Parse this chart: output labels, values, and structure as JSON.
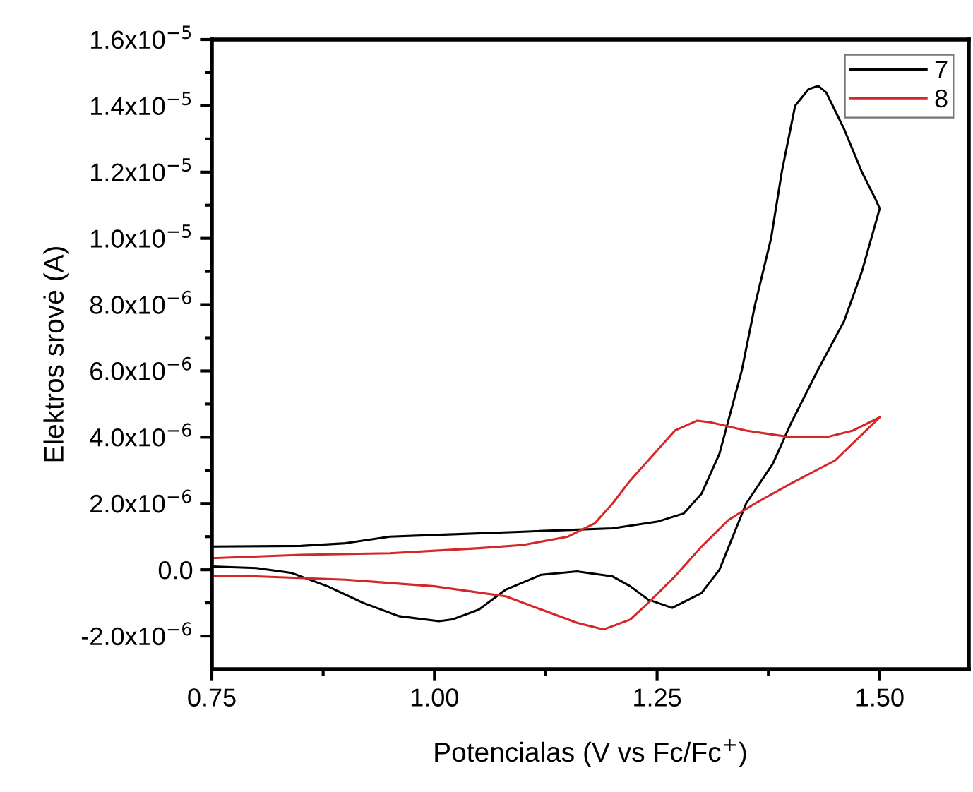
{
  "chart_data": {
    "type": "line",
    "xlabel": "Potencialas (V vs Fc/Fc$^{+}$)",
    "ylabel": "Elektros srovė (A)",
    "xlim": [
      0.75,
      1.6
    ],
    "ylim": [
      -3e-06,
      1.6e-05
    ],
    "xticks": [
      {
        "value": 0.75,
        "label": "0.75"
      },
      {
        "value": 0.875,
        "label": null
      },
      {
        "value": 1.0,
        "label": "1.00"
      },
      {
        "value": 1.125,
        "label": null
      },
      {
        "value": 1.25,
        "label": "1.25"
      },
      {
        "value": 1.375,
        "label": null
      },
      {
        "value": 1.5,
        "label": "1.50"
      }
    ],
    "yticks": [
      {
        "value": -2e-06,
        "label": "-2.0x10$^{−6}$"
      },
      {
        "value": -1e-06,
        "label": null
      },
      {
        "value": 0,
        "label": "0.0"
      },
      {
        "value": 1e-06,
        "label": null
      },
      {
        "value": 2e-06,
        "label": "2.0x10$^{−6}$"
      },
      {
        "value": 3e-06,
        "label": null
      },
      {
        "value": 4e-06,
        "label": "4.0x10$^{−6}$"
      },
      {
        "value": 5e-06,
        "label": null
      },
      {
        "value": 6e-06,
        "label": "6.0x10$^{−6}$"
      },
      {
        "value": 7e-06,
        "label": null
      },
      {
        "value": 8e-06,
        "label": "8.0x10$^{−6}$"
      },
      {
        "value": 9e-06,
        "label": null
      },
      {
        "value": 1e-05,
        "label": "1.0x10$^{−5}$"
      },
      {
        "value": 1.1e-05,
        "label": null
      },
      {
        "value": 1.2e-05,
        "label": "1.2x10$^{−5}$"
      },
      {
        "value": 1.3e-05,
        "label": null
      },
      {
        "value": 1.4e-05,
        "label": "1.4x10$^{−5}$"
      },
      {
        "value": 1.5e-05,
        "label": null
      },
      {
        "value": 1.6e-05,
        "label": "1.6x10$^{−5}$"
      }
    ],
    "grid": false,
    "legend": "top right",
    "marker": "none",
    "line_style": "solid",
    "series": [
      {
        "name": "7",
        "color": "#000000",
        "x": [
          0.75,
          0.85,
          0.9,
          0.95,
          1.0,
          1.1,
          1.2,
          1.25,
          1.28,
          1.3,
          1.32,
          1.345,
          1.36,
          1.378,
          1.39,
          1.405,
          1.42,
          1.431,
          1.44,
          1.46,
          1.48,
          1.495,
          1.5,
          1.48,
          1.46,
          1.43,
          1.4,
          1.38,
          1.35,
          1.32,
          1.3,
          1.267,
          1.24,
          1.22,
          1.2,
          1.16,
          1.12,
          1.08,
          1.05,
          1.02,
          1.005,
          0.96,
          0.92,
          0.88,
          0.84,
          0.8,
          0.75
        ],
        "values": [
          7e-07,
          7.2e-07,
          8e-07,
          1e-06,
          1.05e-06,
          1.15e-06,
          1.25e-06,
          1.45e-06,
          1.7e-06,
          2.3e-06,
          3.5e-06,
          6e-06,
          8e-06,
          1e-05,
          1.2e-05,
          1.4e-05,
          1.45e-05,
          1.46e-05,
          1.44e-05,
          1.33e-05,
          1.2e-05,
          1.12e-05,
          1.09e-05,
          9e-06,
          7.5e-06,
          6e-06,
          4.4e-06,
          3.2e-06,
          2e-06,
          0.0,
          -7e-07,
          -1.15e-06,
          -9e-07,
          -5e-07,
          -2e-07,
          -5e-08,
          -1.5e-07,
          -6e-07,
          -1.2e-06,
          -1.5e-06,
          -1.55e-06,
          -1.4e-06,
          -1e-06,
          -5e-07,
          -1e-07,
          5e-08,
          1e-07
        ]
      },
      {
        "name": "8",
        "color": "#d62728",
        "x": [
          0.75,
          0.85,
          0.95,
          1.05,
          1.1,
          1.15,
          1.18,
          1.2,
          1.22,
          1.25,
          1.27,
          1.295,
          1.31,
          1.35,
          1.4,
          1.44,
          1.47,
          1.5,
          1.45,
          1.4,
          1.36,
          1.33,
          1.3,
          1.27,
          1.24,
          1.22,
          1.19,
          1.16,
          1.12,
          1.08,
          1.0,
          0.9,
          0.8,
          0.75
        ],
        "values": [
          3.5e-07,
          4.5e-07,
          5e-07,
          6.5e-07,
          7.5e-07,
          1e-06,
          1.4e-06,
          2e-06,
          2.7e-06,
          3.6e-06,
          4.2e-06,
          4.5e-06,
          4.45e-06,
          4.2e-06,
          4e-06,
          4e-06,
          4.2e-06,
          4.6e-06,
          3.3e-06,
          2.6e-06,
          2e-06,
          1.5e-06,
          7e-07,
          -2e-07,
          -1e-06,
          -1.5e-06,
          -1.8e-06,
          -1.6e-06,
          -1.2e-06,
          -8e-07,
          -5e-07,
          -3e-07,
          -2e-07,
          -2e-07
        ]
      }
    ]
  }
}
